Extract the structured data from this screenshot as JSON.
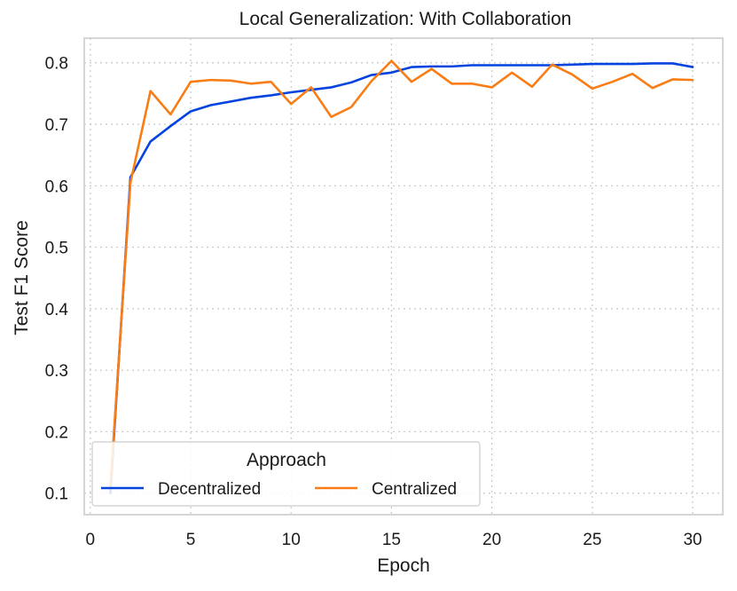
{
  "chart_data": {
    "type": "line",
    "title": "Local Generalization: With Collaboration",
    "xlabel": "Epoch",
    "ylabel": "Test F1 Score",
    "xlim": [
      -0.3,
      31.5
    ],
    "ylim": [
      0.065,
      0.84
    ],
    "xticks": [
      0,
      5,
      10,
      15,
      20,
      25,
      30
    ],
    "yticks": [
      0.1,
      0.2,
      0.3,
      0.4,
      0.5,
      0.6,
      0.7,
      0.8
    ],
    "xtick_labels": [
      "0",
      "5",
      "10",
      "15",
      "20",
      "25",
      "30"
    ],
    "ytick_labels": [
      "0.1",
      "0.2",
      "0.3",
      "0.4",
      "0.5",
      "0.6",
      "0.7",
      "0.8"
    ],
    "grid": true,
    "legend": {
      "title": "Approach",
      "position": "lower-left"
    },
    "x": [
      1,
      2,
      3,
      4,
      5,
      6,
      7,
      8,
      9,
      10,
      11,
      12,
      13,
      14,
      15,
      16,
      17,
      18,
      19,
      20,
      21,
      22,
      23,
      24,
      25,
      26,
      27,
      28,
      29,
      30
    ],
    "series": [
      {
        "name": "Decentralized",
        "color": "#0343df",
        "values": [
          0.1,
          0.614,
          0.672,
          0.697,
          0.721,
          0.731,
          0.737,
          0.743,
          0.747,
          0.752,
          0.756,
          0.76,
          0.768,
          0.78,
          0.784,
          0.793,
          0.794,
          0.794,
          0.796,
          0.796,
          0.796,
          0.796,
          0.796,
          0.797,
          0.798,
          0.798,
          0.798,
          0.799,
          0.799,
          0.793
        ]
      },
      {
        "name": "Centralized",
        "color": "#f97d14",
        "values": [
          0.11,
          0.605,
          0.754,
          0.716,
          0.769,
          0.772,
          0.771,
          0.766,
          0.769,
          0.733,
          0.76,
          0.712,
          0.728,
          0.77,
          0.803,
          0.769,
          0.79,
          0.766,
          0.766,
          0.76,
          0.784,
          0.761,
          0.797,
          0.781,
          0.758,
          0.769,
          0.782,
          0.759,
          0.773,
          0.772
        ]
      }
    ]
  }
}
